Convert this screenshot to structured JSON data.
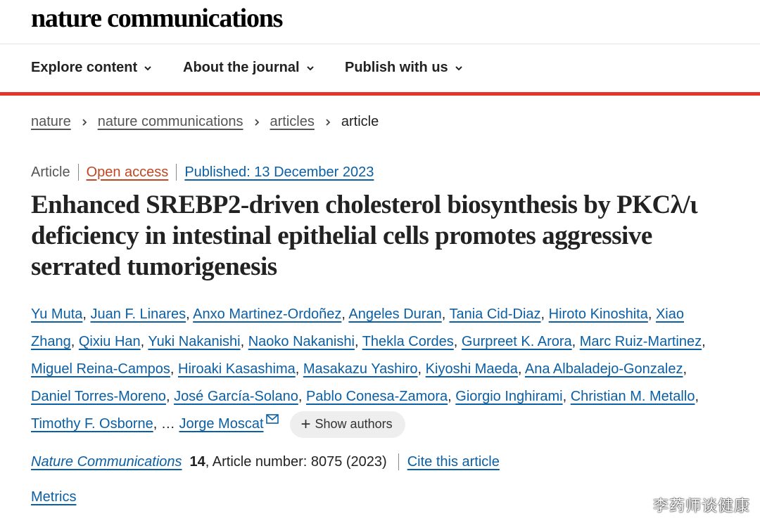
{
  "header": {
    "logo": "nature communications"
  },
  "nav": {
    "items": [
      {
        "label": "Explore content"
      },
      {
        "label": "About the journal"
      },
      {
        "label": "Publish with us"
      }
    ]
  },
  "breadcrumb": {
    "items": [
      "nature",
      "nature communications",
      "articles"
    ],
    "current": "article"
  },
  "meta": {
    "type": "Article",
    "access": "Open access",
    "published": "Published: 13 December 2023"
  },
  "article": {
    "title": "Enhanced SREBP2-driven cholesterol biosynthesis by PKCλ/ι deficiency in intestinal epithelial cells promotes aggressive serrated tumorigenesis",
    "authors": [
      "Yu Muta",
      "Juan F. Linares",
      "Anxo Martinez-Ordoñez",
      "Angeles Duran",
      "Tania Cid-Diaz",
      "Hiroto Kinoshita",
      "Xiao Zhang",
      "Qixiu Han",
      "Yuki Nakanishi",
      "Naoko Nakanishi",
      "Thekla Cordes",
      "Gurpreet K. Arora",
      "Marc Ruiz-Martinez",
      "Miguel Reina-Campos",
      "Hiroaki Kasashima",
      "Masakazu Yashiro",
      "Kiyoshi Maeda",
      "Ana Albaladejo-Gonzalez",
      "Daniel Torres-Moreno",
      "José García-Solano",
      "Pablo Conesa-Zamora",
      "Giorgio Inghirami",
      "Christian M. Metallo",
      "Timothy F. Osborne"
    ],
    "ellipsis": "…",
    "last_author": "Jorge Moscat",
    "show_authors": "Show authors"
  },
  "citation": {
    "journal": "Nature Communications",
    "volume": "14",
    "article_number": ", Article number: 8075 (2023)",
    "cite_label": "Cite this article"
  },
  "metrics_label": "Metrics",
  "watermark": "李药师谈健康",
  "colors": {
    "accent_red": "#e3332b",
    "link_blue": "#0b5fa5",
    "open_access_orange": "#c04722"
  }
}
